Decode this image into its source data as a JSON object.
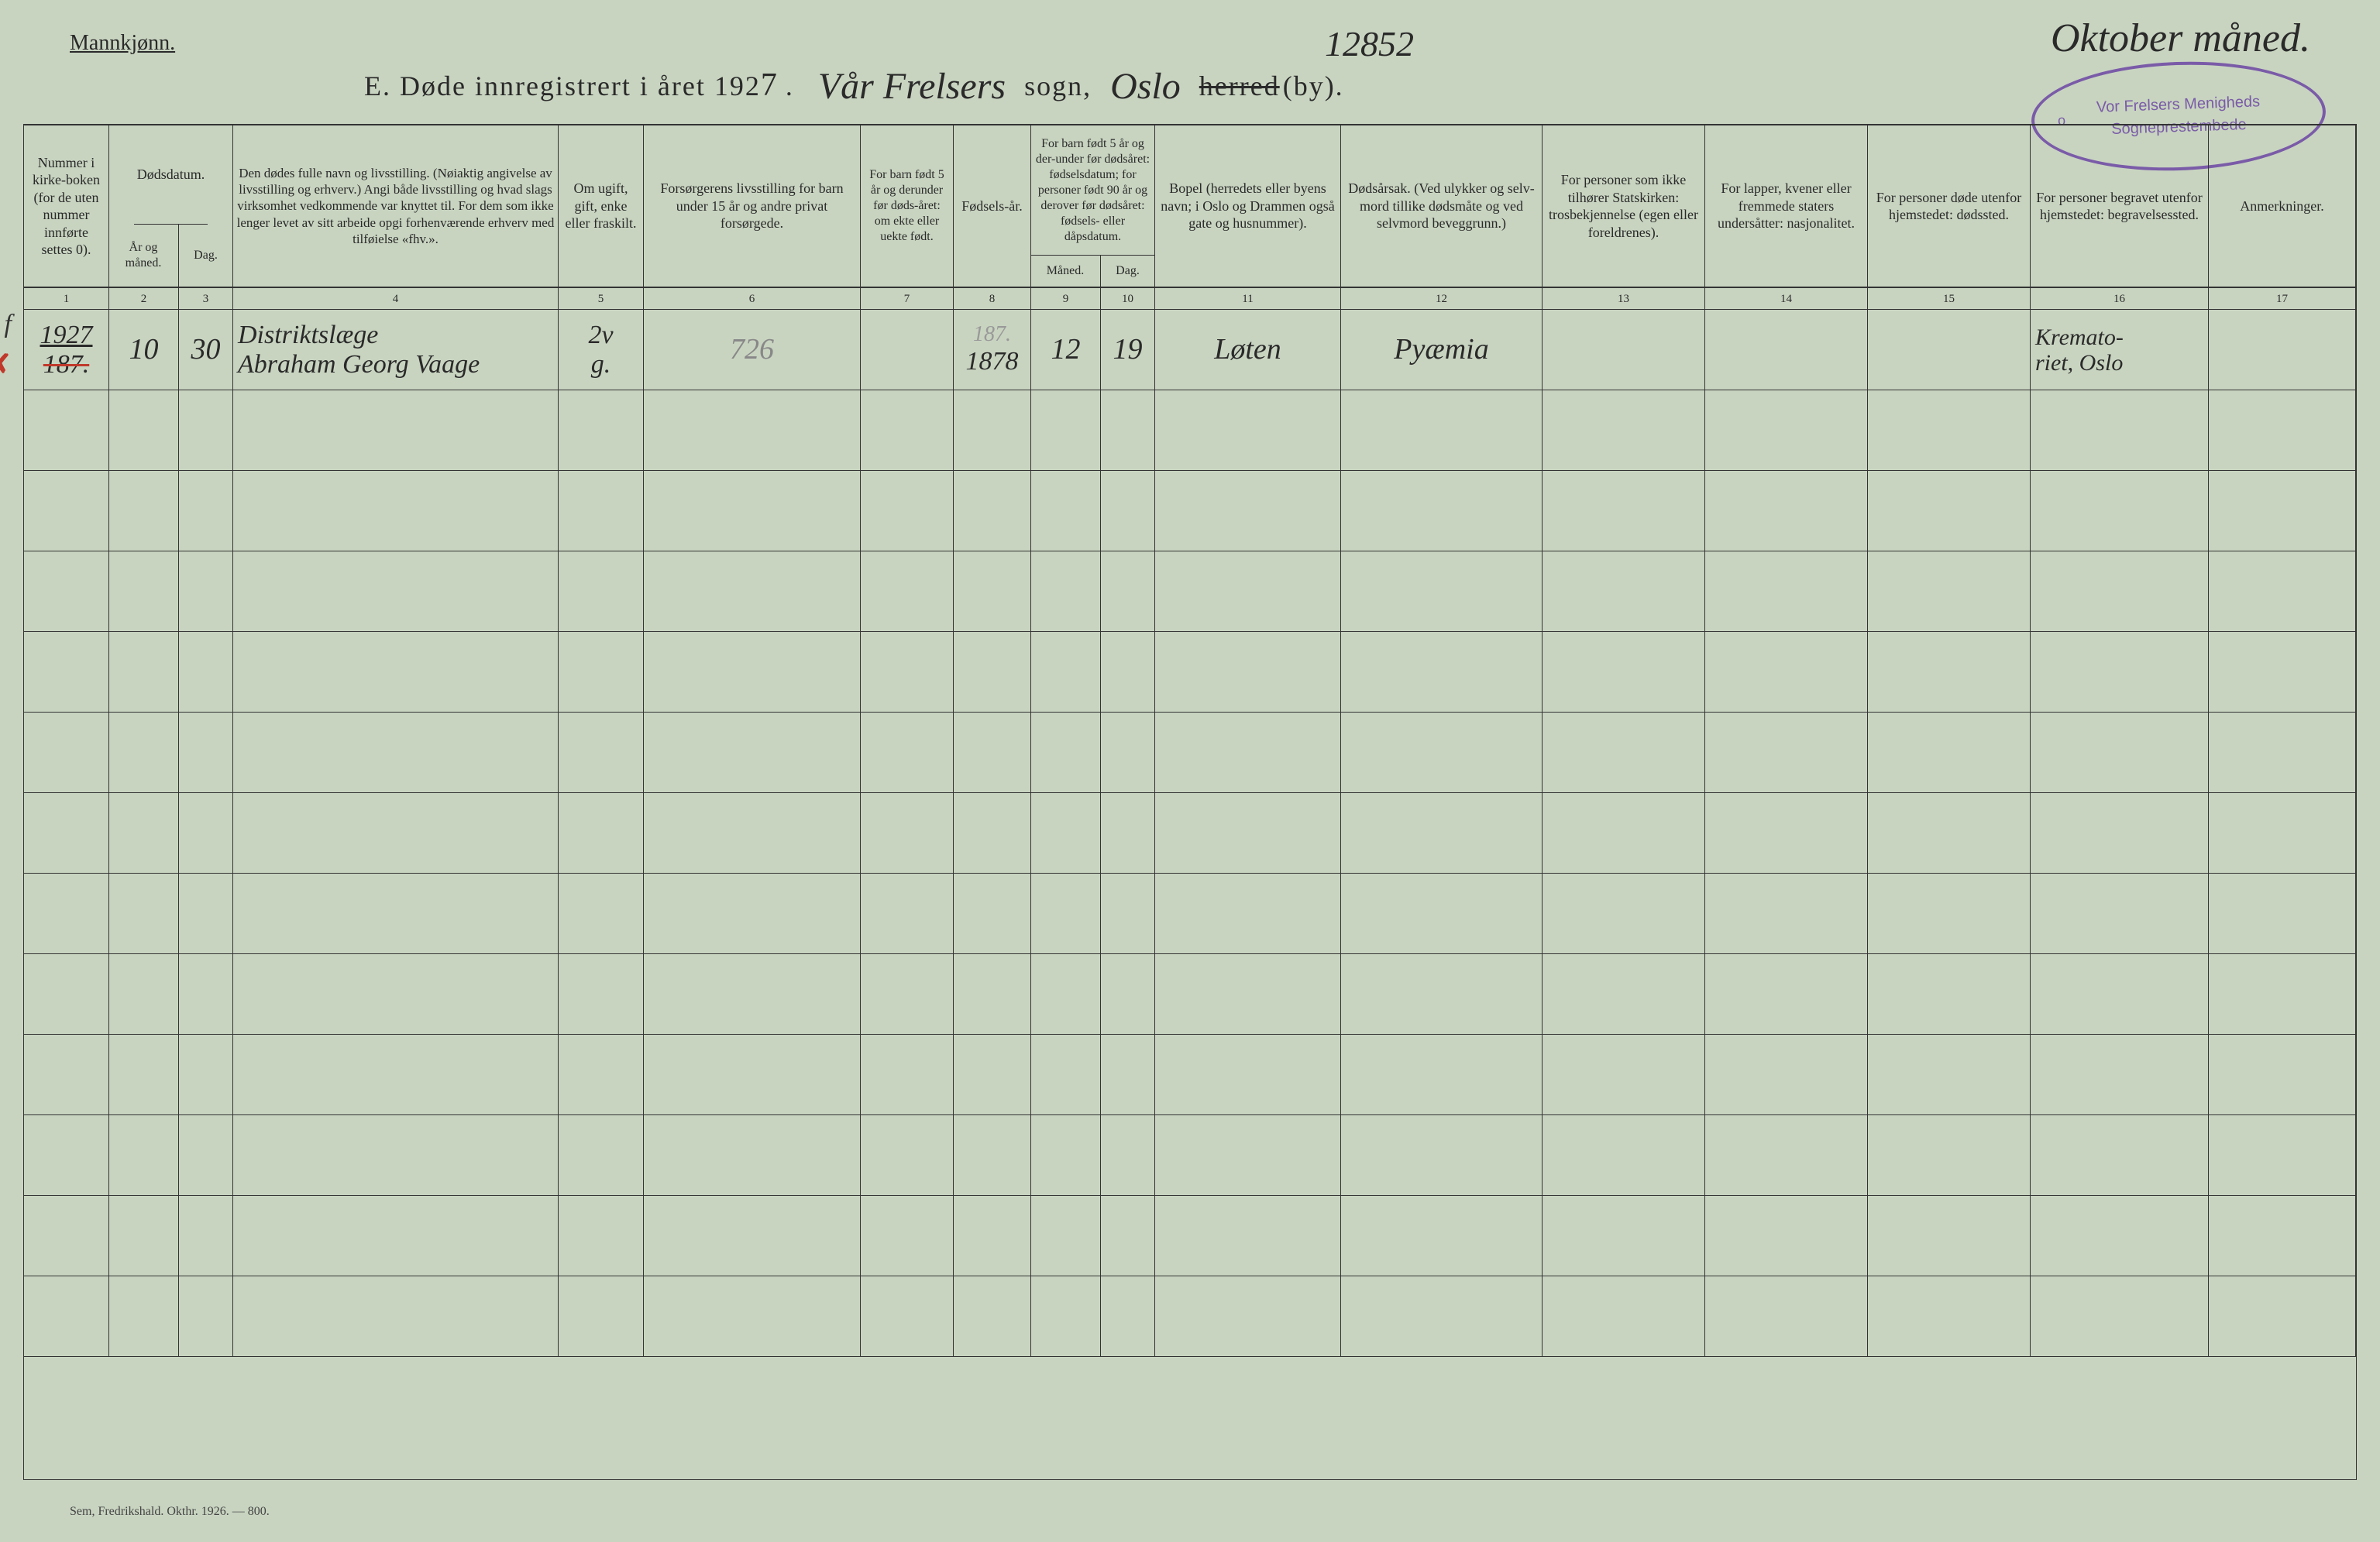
{
  "colors": {
    "paper": "#c8d4c0",
    "ink": "#2a2a2a",
    "stamp": "#7a5ba8",
    "red": "#c0392b"
  },
  "header": {
    "gender_label": "Mannkjønn.",
    "title_prefix": "E.   Døde innregistrert i året 192",
    "year_digit": "7",
    "sogn_script": "Vår Frelsers",
    "sogn_label": "sogn,",
    "by_script": "Oslo",
    "herred_label": "herred",
    "by_label": "(by).",
    "page_number": "12852",
    "month_header": "Oktober måned."
  },
  "stamp": {
    "line1": "Vor Frelsers Menigheds",
    "line2": "Sogneprestembede",
    "circ": "o"
  },
  "columns": {
    "c1": "Nummer i kirke-boken (for de uten nummer innførte settes 0).",
    "c2_top": "Dødsdatum.",
    "c2a": "År og måned.",
    "c2b": "Dag.",
    "c3": "Den dødes fulle navn og livsstilling. (Nøiaktig angivelse av livsstilling og erhverv.) Angi både livsstilling og hvad slags virksomhet vedkommende var knyttet til. For dem som ikke lenger levet av sitt arbeide opgi forhenværende erhverv med tilføielse «fhv.».",
    "c4": "Om ugift, gift, enke eller fraskilt.",
    "c5": "Forsørgerens livsstilling for barn under 15 år og andre privat forsørgede.",
    "c6": "For barn født 5 år og derunder før døds-året: om ekte eller uekte født.",
    "c7": "Fødsels-år.",
    "c8_top": "For barn født 5 år og der-under før dødsåret: fødselsdatum; for personer født 90 år og derover før dødsåret: fødsels- eller dåpsdatum.",
    "c8a": "Måned.",
    "c8b": "Dag.",
    "c9": "Bopel (herredets eller byens navn; i Oslo og Drammen også gate og husnummer).",
    "c10": "Dødsårsak. (Ved ulykker og selv-mord tillike dødsmåte og ved selvmord beveggrunn.)",
    "c11": "For personer som ikke tilhører Statskirken: trosbekjennelse (egen eller foreldrenes).",
    "c12": "For lapper, kvener eller fremmede staters undersåtter: nasjonalitet.",
    "c13": "For personer døde utenfor hjemstedet: dødssted.",
    "c14": "For personer begravet utenfor hjemstedet: begravelsessted.",
    "c15": "Anmerkninger."
  },
  "colnums": [
    "1",
    "2",
    "3",
    "4",
    "5",
    "6",
    "7",
    "8",
    "9",
    "10",
    "11",
    "12",
    "13",
    "14",
    "15",
    "16",
    "17"
  ],
  "margin": {
    "of": "o f",
    "red_x": "✗"
  },
  "entry": {
    "number_top": "1927",
    "number_bot": "187.",
    "year_month": "10",
    "day": "30",
    "name_line1": "Distriktslæge",
    "name_line2": "Abraham Georg Vaage",
    "marital_top": "2v",
    "marital_bot": "g.",
    "provider": "726",
    "born_legit": "",
    "birth_year_faint": "187.",
    "birth_year": "1878",
    "birth_month": "12",
    "birth_day": "19",
    "residence": "Løten",
    "cause": "Pyæmia",
    "c11": "",
    "c12": "",
    "c13": "",
    "burial_line1": "Kremato-",
    "burial_line2": "riet, Oslo",
    "remarks": ""
  },
  "blank_rows": 12,
  "footer": "Sem, Fredrikshald. Okthr. 1926. — 800."
}
